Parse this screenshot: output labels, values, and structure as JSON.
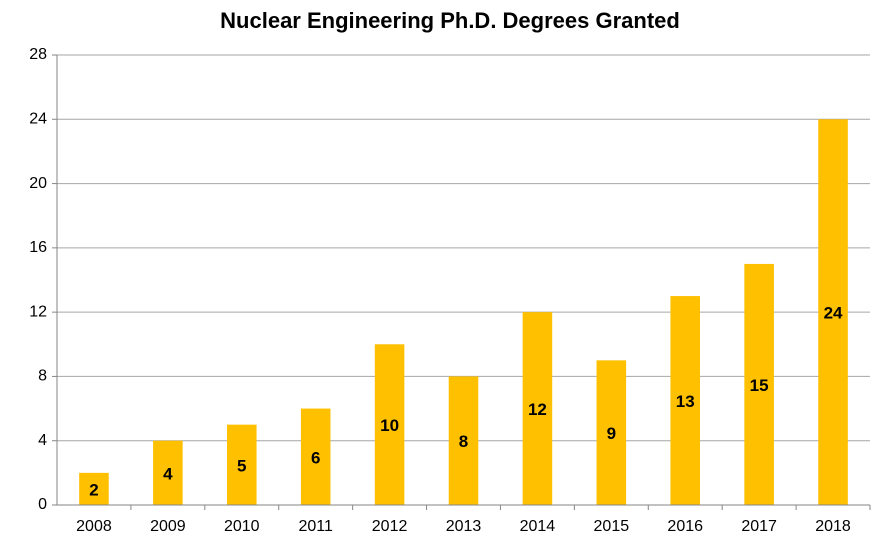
{
  "chart_data": {
    "type": "bar",
    "title": "Nuclear Engineering Ph.D. Degrees Granted",
    "categories": [
      "2008",
      "2009",
      "2010",
      "2011",
      "2012",
      "2013",
      "2014",
      "2015",
      "2016",
      "2017",
      "2018"
    ],
    "values": [
      2,
      4,
      5,
      6,
      10,
      8,
      12,
      9,
      13,
      15,
      24
    ],
    "color": "#ffc000",
    "ylim": [
      0,
      28
    ],
    "yticks": [
      0,
      4,
      8,
      12,
      16,
      20,
      24,
      28
    ],
    "grid": true
  }
}
